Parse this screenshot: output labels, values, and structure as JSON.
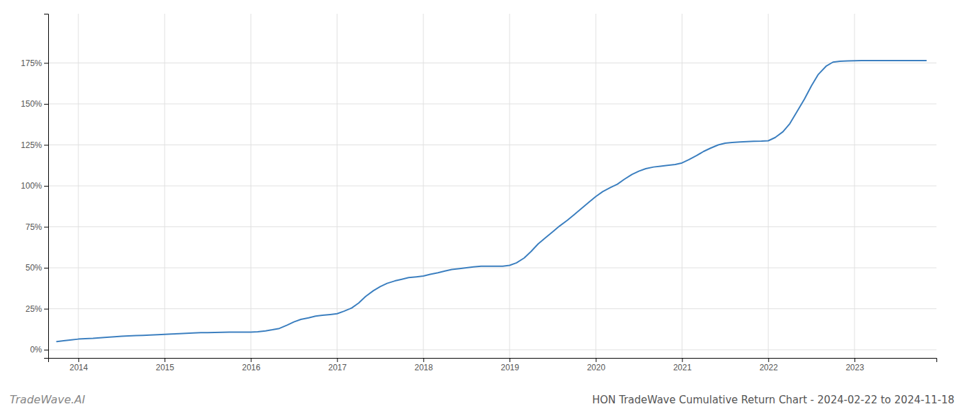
{
  "chart_data": {
    "type": "line",
    "title": "HON TradeWave Cumulative Return Chart - 2024-02-22 to 2024-11-18",
    "annotations": [
      "TradeWave.AI"
    ],
    "color": "#3a7ebf",
    "grid": true,
    "x": [
      2013.75,
      2013.83,
      2013.92,
      2014.0,
      2014.08,
      2014.17,
      2014.25,
      2014.33,
      2014.42,
      2014.5,
      2014.58,
      2014.67,
      2014.75,
      2014.83,
      2014.92,
      2015.0,
      2015.08,
      2015.17,
      2015.25,
      2015.33,
      2015.42,
      2015.5,
      2015.58,
      2015.67,
      2015.75,
      2015.83,
      2015.92,
      2016.0,
      2016.08,
      2016.17,
      2016.25,
      2016.33,
      2016.42,
      2016.5,
      2016.58,
      2016.67,
      2016.75,
      2016.83,
      2016.92,
      2017.0,
      2017.08,
      2017.17,
      2017.25,
      2017.33,
      2017.42,
      2017.5,
      2017.58,
      2017.67,
      2017.75,
      2017.83,
      2017.92,
      2018.0,
      2018.08,
      2018.17,
      2018.25,
      2018.33,
      2018.42,
      2018.5,
      2018.58,
      2018.67,
      2018.75,
      2018.83,
      2018.92,
      2019.0,
      2019.08,
      2019.17,
      2019.25,
      2019.33,
      2019.42,
      2019.5,
      2019.58,
      2019.67,
      2019.75,
      2019.83,
      2019.92,
      2020.0,
      2020.08,
      2020.17,
      2020.25,
      2020.33,
      2020.42,
      2020.5,
      2020.58,
      2020.67,
      2020.75,
      2020.83,
      2020.92,
      2021.0,
      2021.08,
      2021.17,
      2021.25,
      2021.33,
      2021.42,
      2021.5,
      2021.58,
      2021.67,
      2021.75,
      2021.83,
      2021.92,
      2022.0,
      2022.08,
      2022.17,
      2022.25,
      2022.33,
      2022.42,
      2022.5,
      2022.58,
      2022.67,
      2022.75,
      2022.83,
      2022.92,
      2023.0,
      2023.08,
      2023.17,
      2023.25,
      2023.33,
      2023.42,
      2023.5,
      2023.58,
      2023.67,
      2023.75,
      2023.83
    ],
    "values": [
      0.05,
      0.055,
      0.06,
      0.065,
      0.068,
      0.07,
      0.073,
      0.076,
      0.079,
      0.082,
      0.084,
      0.086,
      0.088,
      0.09,
      0.092,
      0.094,
      0.096,
      0.098,
      0.1,
      0.102,
      0.104,
      0.104,
      0.105,
      0.106,
      0.107,
      0.108,
      0.108,
      0.108,
      0.11,
      0.115,
      0.122,
      0.13,
      0.15,
      0.17,
      0.185,
      0.195,
      0.205,
      0.21,
      0.215,
      0.22,
      0.235,
      0.255,
      0.285,
      0.325,
      0.36,
      0.385,
      0.405,
      0.42,
      0.43,
      0.44,
      0.445,
      0.45,
      0.46,
      0.47,
      0.48,
      0.49,
      0.495,
      0.5,
      0.505,
      0.51,
      0.51,
      0.51,
      0.51,
      0.515,
      0.53,
      0.56,
      0.6,
      0.645,
      0.685,
      0.72,
      0.755,
      0.79,
      0.825,
      0.86,
      0.9,
      0.935,
      0.965,
      0.99,
      1.01,
      1.04,
      1.07,
      1.09,
      1.105,
      1.115,
      1.12,
      1.125,
      1.13,
      1.14,
      1.16,
      1.185,
      1.21,
      1.23,
      1.25,
      1.26,
      1.265,
      1.268,
      1.27,
      1.272,
      1.273,
      1.275,
      1.295,
      1.33,
      1.38,
      1.45,
      1.53,
      1.61,
      1.68,
      1.73,
      1.755,
      1.76,
      1.762,
      1.763,
      1.764,
      1.764,
      1.764,
      1.764,
      1.764,
      1.764,
      1.764,
      1.764,
      1.764,
      1.764
    ],
    "xlim": [
      2013.65,
      2023.95
    ],
    "ylim": [
      -0.05,
      2.05
    ],
    "xticks": [
      2014,
      2015,
      2016,
      2017,
      2018,
      2019,
      2020,
      2021,
      2022,
      2023
    ],
    "yticks": [
      {
        "value": 0.0,
        "label": "0%"
      },
      {
        "value": 0.25,
        "label": "25%"
      },
      {
        "value": 0.5,
        "label": "50%"
      },
      {
        "value": 0.75,
        "label": "75%"
      },
      {
        "value": 1.0,
        "label": "100%"
      },
      {
        "value": 1.25,
        "label": "125%"
      },
      {
        "value": 1.5,
        "label": "150%"
      },
      {
        "value": 1.75,
        "label": "175%"
      }
    ]
  }
}
